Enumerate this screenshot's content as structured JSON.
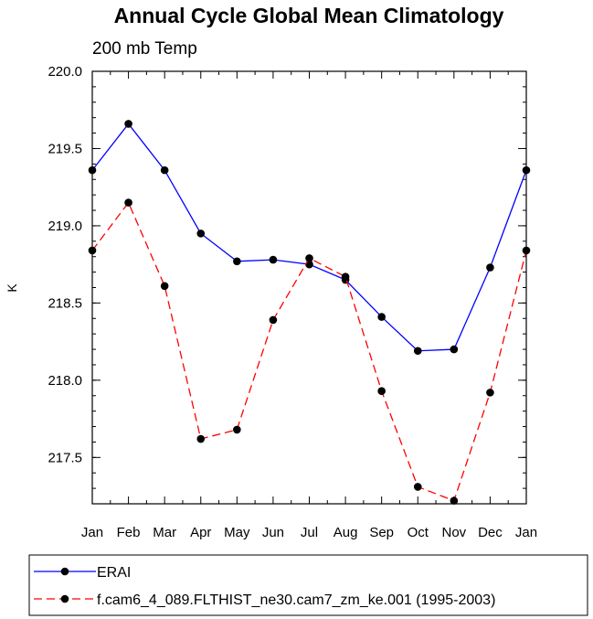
{
  "chart_data": {
    "type": "line",
    "title": "Annual Cycle Global Mean Climatology",
    "subtitle": "200 mb Temp",
    "xlabel": "",
    "ylabel": "K",
    "categories": [
      "Jan",
      "Feb",
      "Mar",
      "Apr",
      "May",
      "Jun",
      "Jul",
      "Aug",
      "Sep",
      "Oct",
      "Nov",
      "Dec",
      "Jan"
    ],
    "ylim": [
      217.2,
      220.0
    ],
    "yticks": [
      217.5,
      218.0,
      218.5,
      219.0,
      219.5,
      220.0
    ],
    "ytick_labels": [
      "217.5",
      "218.0",
      "218.5",
      "219.0",
      "219.5",
      "220.0"
    ],
    "grid": false,
    "legend_position": "bottom",
    "series": [
      {
        "name": "ERAI",
        "color": "#0000ff",
        "line_style": "solid",
        "marker": "circle",
        "values": [
          219.36,
          219.66,
          219.36,
          218.95,
          218.77,
          218.78,
          218.75,
          218.65,
          218.41,
          218.19,
          218.2,
          218.73,
          219.36
        ]
      },
      {
        "name": "f.cam6_4_089.FLTHIST_ne30.cam7_zm_ke.001 (1995-2003)",
        "color": "#ff0000",
        "line_style": "dashed",
        "marker": "circle",
        "values": [
          218.84,
          219.15,
          218.61,
          217.62,
          217.68,
          218.39,
          218.79,
          218.67,
          217.93,
          217.31,
          217.22,
          217.92,
          218.84
        ]
      }
    ]
  }
}
